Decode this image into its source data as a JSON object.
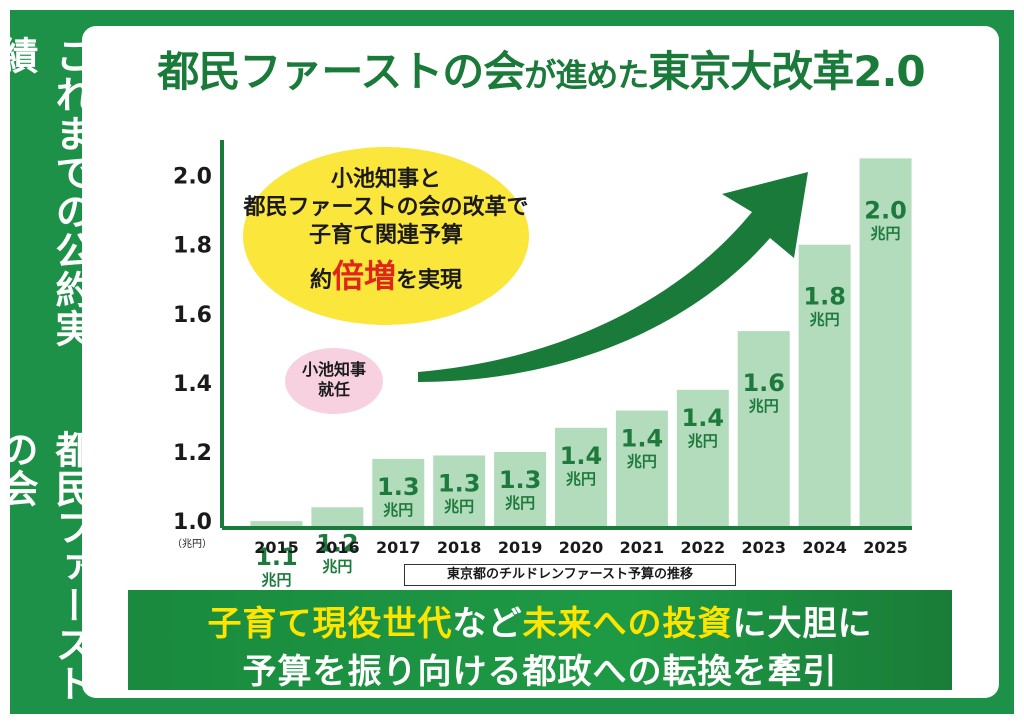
{
  "side": {
    "top_text": "これまでの公約実績",
    "bottom_text": "都民ファーストの会"
  },
  "title": {
    "part1": "都民ファーストの会",
    "part2": "が進めた",
    "part3": "東京大改革2.0"
  },
  "bubble": {
    "line1": "小池知事と",
    "line2": "都民ファーストの会の改革で",
    "line3": "子育て関連予算",
    "line4a": "約",
    "line4b": "倍増",
    "line4c": "を実現"
  },
  "pink_bubble": {
    "line1": "小池知事",
    "line2": "就任"
  },
  "caption": "東京都のチルドレンファースト予算の推移",
  "banner": {
    "l1_a": "子育て現役世代",
    "l1_b": "など",
    "l1_c": "未来への投資",
    "l1_d": "に大胆に",
    "l2": "予算を振り向ける都政への転換を牽引"
  },
  "colors": {
    "frame_green": "#1e9148",
    "title_green": "#1a7a3a",
    "bar_fill": "#b3dcbc",
    "bar_label": "#1e7a3c",
    "arrow": "#1a7a3a",
    "bubble_yellow": "#fbe63c",
    "accent_red": "#e0251b",
    "pink": "#f7d1df"
  },
  "chart_data": {
    "type": "bar",
    "categories": [
      "2015",
      "2016",
      "2017",
      "2018",
      "2019",
      "2020",
      "2021",
      "2022",
      "2023",
      "2024",
      "2025"
    ],
    "values": [
      1.1,
      1.2,
      1.3,
      1.3,
      1.3,
      1.4,
      1.4,
      1.4,
      1.6,
      1.8,
      2.0
    ],
    "bar_heights": [
      1.0,
      1.04,
      1.18,
      1.19,
      1.2,
      1.27,
      1.32,
      1.38,
      1.55,
      1.8,
      2.05
    ],
    "value_labels": [
      "1.1",
      "1.2",
      "1.3",
      "1.3",
      "1.3",
      "1.4",
      "1.4",
      "1.4",
      "1.6",
      "1.8",
      "2.0"
    ],
    "unit_label": "兆円",
    "y_ticks": [
      "1.0",
      "1.2",
      "1.4",
      "1.6",
      "1.8",
      "2.0"
    ],
    "y_tick_values": [
      1.0,
      1.2,
      1.4,
      1.6,
      1.8,
      2.0
    ],
    "ylabel": "（兆円）",
    "ylim": [
      0.98,
      2.08
    ],
    "grid": false
  }
}
